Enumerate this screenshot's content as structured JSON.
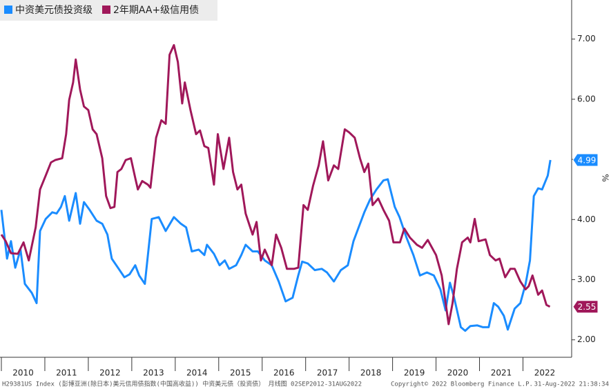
{
  "chart_data": {
    "type": "line",
    "legend": "top-left",
    "unit_label": "%",
    "xlim": [
      2010,
      2023.12
    ],
    "xticks": [
      2010,
      2011,
      2012,
      2013,
      2014,
      2015,
      2016,
      2017,
      2018,
      2019,
      2020,
      2021,
      2022
    ],
    "ylim": [
      1.71,
      7.65
    ],
    "yticks": [
      {
        "value": 2,
        "label": "2.00"
      },
      {
        "value": 3,
        "label": "3.00"
      },
      {
        "value": 4,
        "label": "4.00"
      },
      {
        "value": 5,
        "label": "5.00"
      },
      {
        "value": 6,
        "label": "6.00"
      },
      {
        "value": 7,
        "label": "7.00"
      }
    ],
    "footer": [
      "H29381US Index (彭博亚洲(除日本)美元信用债指数(中国高收益)) 中资美元债（投资债）  月线图 02SEP2012-31AUG2022",
      "Copyright© 2022 Bloomberg Finance L.P.",
      "31-Aug-2022 21:38:34"
    ],
    "series": [
      {
        "name": "中资美元债投资级",
        "color": "#1a8cff",
        "x": [
          2010.0,
          2010.13,
          2010.22,
          2010.32,
          2010.44,
          2010.54,
          2010.7,
          2010.81,
          2010.89,
          2011.02,
          2011.17,
          2011.27,
          2011.37,
          2011.46,
          2011.56,
          2011.71,
          2011.81,
          2011.9,
          2012.03,
          2012.19,
          2012.32,
          2012.44,
          2012.54,
          2012.7,
          2012.83,
          2012.95,
          2013.08,
          2013.17,
          2013.3,
          2013.46,
          2013.62,
          2013.78,
          2013.97,
          2014.13,
          2014.25,
          2014.38,
          2014.54,
          2014.67,
          2014.73,
          2014.89,
          2015.02,
          2015.14,
          2015.24,
          2015.4,
          2015.52,
          2015.62,
          2015.78,
          2015.9,
          2016.06,
          2016.22,
          2016.38,
          2016.54,
          2016.7,
          2016.83,
          2016.92,
          2017.05,
          2017.21,
          2017.37,
          2017.49,
          2017.65,
          2017.81,
          2017.97,
          2018.1,
          2018.22,
          2018.35,
          2018.48,
          2018.63,
          2018.79,
          2018.89,
          2019.05,
          2019.16,
          2019.32,
          2019.48,
          2019.63,
          2019.79,
          2019.95,
          2020.1,
          2020.22,
          2020.32,
          2020.41,
          2020.57,
          2020.67,
          2020.79,
          2020.95,
          2021.08,
          2021.21,
          2021.33,
          2021.43,
          2021.56,
          2021.65,
          2021.81,
          2021.94,
          2022.06,
          2022.16,
          2022.25,
          2022.35,
          2022.44,
          2022.57,
          2022.63
        ],
        "values": [
          4.16,
          3.35,
          3.64,
          3.2,
          3.5,
          2.93,
          2.78,
          2.61,
          3.81,
          4.01,
          4.12,
          4.1,
          4.21,
          4.39,
          3.98,
          4.44,
          3.93,
          4.29,
          4.16,
          3.98,
          3.93,
          3.75,
          3.35,
          3.18,
          3.04,
          3.09,
          3.24,
          3.07,
          2.93,
          4.01,
          4.04,
          3.81,
          4.04,
          3.93,
          3.87,
          3.47,
          3.5,
          3.41,
          3.58,
          3.43,
          3.24,
          3.32,
          3.18,
          3.24,
          3.41,
          3.58,
          3.47,
          3.47,
          3.32,
          3.24,
          2.97,
          2.64,
          2.7,
          3.07,
          3.3,
          3.27,
          3.16,
          3.18,
          3.12,
          2.97,
          3.16,
          3.24,
          3.64,
          3.87,
          4.12,
          4.33,
          4.5,
          4.65,
          4.67,
          4.21,
          4.04,
          3.7,
          3.41,
          3.07,
          3.12,
          3.07,
          2.84,
          2.49,
          2.95,
          2.72,
          2.21,
          2.15,
          2.23,
          2.24,
          2.21,
          2.21,
          2.61,
          2.55,
          2.4,
          2.17,
          2.52,
          2.61,
          2.93,
          3.32,
          4.39,
          4.52,
          4.5,
          4.73,
          4.99
        ]
      },
      {
        "name": "2年期AA+级信用债",
        "color": "#a0185a",
        "x": [
          2010.0,
          2010.1,
          2010.22,
          2010.38,
          2010.51,
          2010.63,
          2010.79,
          2010.89,
          2011.02,
          2011.14,
          2011.24,
          2011.4,
          2011.49,
          2011.56,
          2011.65,
          2011.71,
          2011.81,
          2011.9,
          2012.0,
          2012.1,
          2012.19,
          2012.32,
          2012.41,
          2012.51,
          2012.6,
          2012.67,
          2012.76,
          2012.86,
          2012.98,
          2013.08,
          2013.14,
          2013.24,
          2013.37,
          2013.43,
          2013.56,
          2013.68,
          2013.78,
          2013.87,
          2013.97,
          2014.06,
          2014.16,
          2014.22,
          2014.35,
          2014.48,
          2014.57,
          2014.67,
          2014.76,
          2014.89,
          2014.98,
          2015.11,
          2015.24,
          2015.33,
          2015.43,
          2015.52,
          2015.62,
          2015.78,
          2015.87,
          2015.97,
          2016.06,
          2016.22,
          2016.32,
          2016.44,
          2016.57,
          2016.73,
          2016.83,
          2016.95,
          2017.05,
          2017.17,
          2017.3,
          2017.4,
          2017.52,
          2017.65,
          2017.75,
          2017.9,
          2018.0,
          2018.13,
          2018.25,
          2018.35,
          2018.44,
          2018.54,
          2018.67,
          2018.79,
          2018.92,
          2019.02,
          2019.17,
          2019.27,
          2019.4,
          2019.56,
          2019.68,
          2019.81,
          2020.0,
          2020.13,
          2020.29,
          2020.38,
          2020.48,
          2020.6,
          2020.73,
          2020.79,
          2020.89,
          2020.98,
          2021.14,
          2021.24,
          2021.37,
          2021.46,
          2021.59,
          2021.71,
          2021.81,
          2021.94,
          2022.06,
          2022.13,
          2022.22,
          2022.35,
          2022.44,
          2022.54,
          2022.62
        ],
        "values": [
          3.75,
          3.64,
          3.44,
          3.43,
          3.62,
          3.32,
          3.87,
          4.5,
          4.73,
          4.95,
          4.99,
          5.02,
          5.42,
          5.99,
          6.28,
          6.66,
          6.16,
          5.88,
          5.82,
          5.5,
          5.42,
          5.02,
          4.39,
          4.19,
          4.21,
          4.79,
          4.84,
          4.99,
          5.02,
          4.69,
          4.5,
          4.64,
          4.58,
          4.53,
          5.36,
          5.65,
          5.59,
          6.74,
          6.9,
          6.62,
          5.93,
          6.28,
          5.82,
          5.42,
          5.48,
          5.22,
          5.19,
          4.58,
          5.42,
          4.84,
          5.36,
          4.79,
          4.5,
          4.58,
          4.1,
          3.75,
          3.96,
          3.32,
          3.5,
          3.24,
          3.75,
          3.53,
          3.18,
          3.18,
          3.2,
          4.24,
          4.16,
          4.56,
          4.9,
          5.3,
          4.65,
          4.9,
          4.84,
          5.5,
          5.45,
          5.36,
          5.02,
          4.79,
          4.93,
          4.24,
          4.35,
          4.16,
          3.98,
          3.62,
          3.62,
          3.85,
          3.7,
          3.58,
          3.53,
          3.66,
          3.41,
          3.07,
          2.26,
          2.61,
          3.18,
          3.62,
          3.7,
          3.62,
          4.01,
          3.64,
          3.67,
          3.41,
          3.32,
          3.35,
          3.04,
          3.18,
          3.18,
          2.97,
          2.84,
          2.89,
          3.07,
          2.75,
          2.82,
          2.58,
          2.55
        ]
      }
    ]
  }
}
